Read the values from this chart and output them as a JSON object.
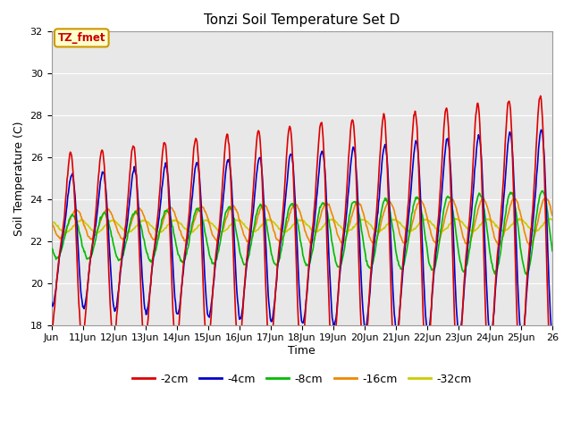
{
  "title": "Tonzi Soil Temperature Set D",
  "xlabel": "Time",
  "ylabel": "Soil Temperature (C)",
  "ylim": [
    18,
    32
  ],
  "yticks": [
    18,
    20,
    22,
    24,
    26,
    28,
    30,
    32
  ],
  "xlim": [
    10,
    26
  ],
  "background_color": "#e8e8e8",
  "fig_bg": "#ffffff",
  "colors": {
    "-2cm": "#dd0000",
    "-4cm": "#0000cc",
    "-8cm": "#00bb00",
    "-16cm": "#ee8800",
    "-32cm": "#cccc00"
  },
  "annotation_text": "TZ_fmet",
  "annotation_bg": "#ffffcc",
  "annotation_border": "#cc9900",
  "annotation_text_color": "#cc0000",
  "grid_color": "#ffffff",
  "lw": 1.2
}
